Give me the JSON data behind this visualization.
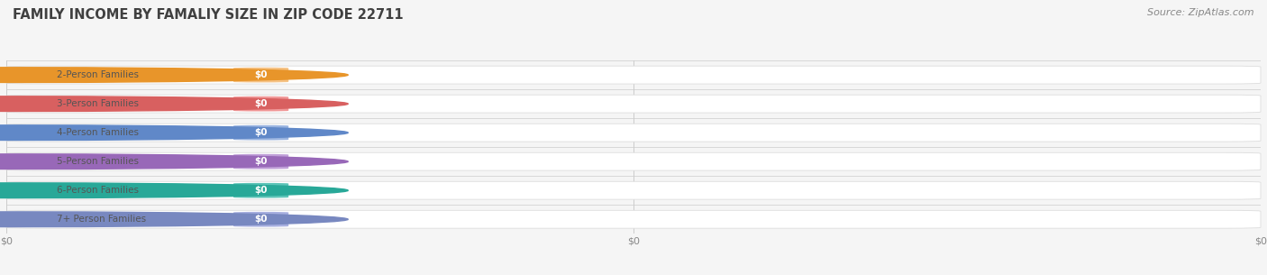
{
  "title": "FAMILY INCOME BY FAMALIY SIZE IN ZIP CODE 22711",
  "source": "Source: ZipAtlas.com",
  "categories": [
    "2-Person Families",
    "3-Person Families",
    "4-Person Families",
    "5-Person Families",
    "6-Person Families",
    "7+ Person Families"
  ],
  "values": [
    0,
    0,
    0,
    0,
    0,
    0
  ],
  "bar_colors": [
    "#f5c285",
    "#f09898",
    "#9ab4e0",
    "#c0a0d8",
    "#5ec4b8",
    "#a8b0e0"
  ],
  "dot_colors": [
    "#e8952a",
    "#d86060",
    "#6088c8",
    "#9868b8",
    "#28a898",
    "#7888c0"
  ],
  "value_labels": [
    "$0",
    "$0",
    "$0",
    "$0",
    "$0",
    "$0"
  ],
  "x_tick_labels": [
    "$0",
    "$0",
    "$0"
  ],
  "x_tick_positions": [
    0.0,
    0.5,
    1.0
  ],
  "bg_color": "#f5f5f5",
  "label_fontsize": 7.5,
  "value_fontsize": 7.5,
  "tick_fontsize": 8,
  "title_fontsize": 10.5,
  "source_fontsize": 8
}
